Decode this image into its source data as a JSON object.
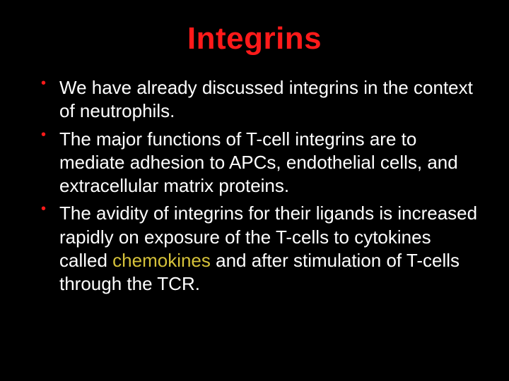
{
  "colors": {
    "background": "#000000",
    "title": "#ff1a1a",
    "bullet_marker": "#ff1a1a",
    "body_text": "#ffffff",
    "highlight": "#d6c23a"
  },
  "typography": {
    "title_fontsize": 44,
    "body_fontsize": 26,
    "font_family": "Comic Sans MS"
  },
  "title": "Integrins",
  "bullets": [
    {
      "prefix": "We have already discussed integrins in the context of neutrophils.",
      "highlight": "",
      "suffix": ""
    },
    {
      "prefix": "The major functions of T-cell integrins are to mediate adhesion to APCs, endothelial cells, and extracellular matrix proteins.",
      "highlight": "",
      "suffix": ""
    },
    {
      "prefix": "The avidity of integrins for their ligands is increased rapidly on exposure of the T-cells to cytokines called ",
      "highlight": "chemokines",
      "suffix": " and after stimulation of T-cells through the TCR."
    }
  ]
}
